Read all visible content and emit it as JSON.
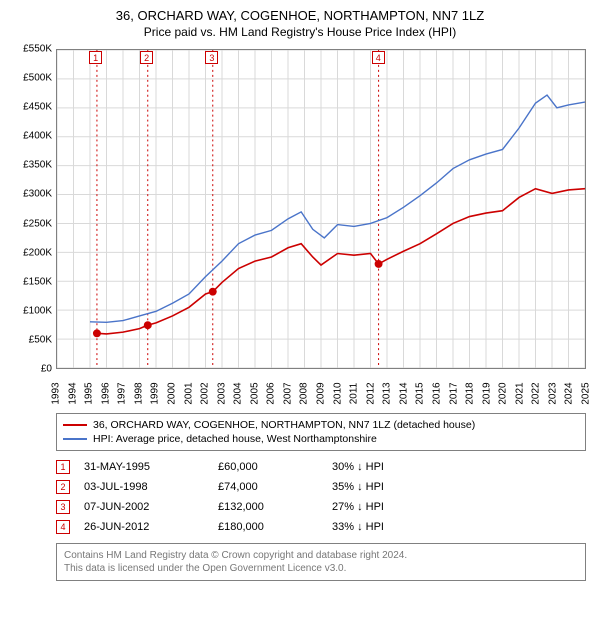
{
  "title": "36, ORCHARD WAY, COGENHOE, NORTHAMPTON, NN7 1LZ",
  "subtitle": "Price paid vs. HM Land Registry's House Price Index (HPI)",
  "chart": {
    "type": "line",
    "background_color": "#ffffff",
    "border_color": "#808080",
    "grid_color": "#d9d9d9",
    "event_line_color": "#cc0000",
    "xlim": [
      1993,
      2025
    ],
    "ylim": [
      0,
      550000
    ],
    "ytick_step": 50000,
    "y_ticks": [
      "£0",
      "£50K",
      "£100K",
      "£150K",
      "£200K",
      "£250K",
      "£300K",
      "£350K",
      "£400K",
      "£450K",
      "£500K",
      "£550K"
    ],
    "x_ticks": [
      "1993",
      "1994",
      "1995",
      "1996",
      "1997",
      "1998",
      "1999",
      "2000",
      "2001",
      "2002",
      "2003",
      "2004",
      "2005",
      "2006",
      "2007",
      "2008",
      "2009",
      "2010",
      "2011",
      "2012",
      "2013",
      "2014",
      "2015",
      "2016",
      "2017",
      "2018",
      "2019",
      "2020",
      "2021",
      "2022",
      "2023",
      "2024",
      "2025"
    ],
    "series": [
      {
        "name": "hpi",
        "color": "#4a74c9",
        "line_width": 1.4,
        "points": [
          [
            1995.0,
            80000
          ],
          [
            1996.0,
            79000
          ],
          [
            1997.0,
            82000
          ],
          [
            1998.0,
            90000
          ],
          [
            1999.0,
            98000
          ],
          [
            2000.0,
            112000
          ],
          [
            2001.0,
            128000
          ],
          [
            2002.0,
            158000
          ],
          [
            2003.0,
            185000
          ],
          [
            2004.0,
            215000
          ],
          [
            2005.0,
            230000
          ],
          [
            2006.0,
            238000
          ],
          [
            2007.0,
            258000
          ],
          [
            2007.8,
            270000
          ],
          [
            2008.5,
            240000
          ],
          [
            2009.2,
            225000
          ],
          [
            2010.0,
            248000
          ],
          [
            2011.0,
            245000
          ],
          [
            2012.0,
            250000
          ],
          [
            2013.0,
            260000
          ],
          [
            2014.0,
            278000
          ],
          [
            2015.0,
            298000
          ],
          [
            2016.0,
            320000
          ],
          [
            2017.0,
            345000
          ],
          [
            2018.0,
            360000
          ],
          [
            2019.0,
            370000
          ],
          [
            2020.0,
            378000
          ],
          [
            2021.0,
            415000
          ],
          [
            2022.0,
            458000
          ],
          [
            2022.7,
            472000
          ],
          [
            2023.3,
            450000
          ],
          [
            2024.0,
            455000
          ],
          [
            2025.0,
            460000
          ]
        ]
      },
      {
        "name": "property",
        "color": "#cc0000",
        "line_width": 1.6,
        "points": [
          [
            1995.42,
            60000
          ],
          [
            1996.0,
            59000
          ],
          [
            1997.0,
            62000
          ],
          [
            1998.0,
            68000
          ],
          [
            1998.5,
            74000
          ],
          [
            1999.0,
            78000
          ],
          [
            2000.0,
            90000
          ],
          [
            2001.0,
            105000
          ],
          [
            2002.0,
            128000
          ],
          [
            2002.44,
            132000
          ],
          [
            2003.0,
            148000
          ],
          [
            2004.0,
            172000
          ],
          [
            2005.0,
            185000
          ],
          [
            2006.0,
            192000
          ],
          [
            2007.0,
            208000
          ],
          [
            2007.8,
            215000
          ],
          [
            2008.5,
            192000
          ],
          [
            2009.0,
            178000
          ],
          [
            2010.0,
            198000
          ],
          [
            2011.0,
            195000
          ],
          [
            2012.0,
            198000
          ],
          [
            2012.49,
            180000
          ],
          [
            2013.0,
            188000
          ],
          [
            2014.0,
            202000
          ],
          [
            2015.0,
            215000
          ],
          [
            2016.0,
            232000
          ],
          [
            2017.0,
            250000
          ],
          [
            2018.0,
            262000
          ],
          [
            2019.0,
            268000
          ],
          [
            2020.0,
            272000
          ],
          [
            2021.0,
            295000
          ],
          [
            2022.0,
            310000
          ],
          [
            2023.0,
            302000
          ],
          [
            2024.0,
            308000
          ],
          [
            2025.0,
            310000
          ]
        ]
      }
    ],
    "event_markers": [
      {
        "n": "1",
        "x": 1995.42,
        "y": 60000
      },
      {
        "n": "2",
        "x": 1998.5,
        "y": 74000
      },
      {
        "n": "3",
        "x": 2002.44,
        "y": 132000
      },
      {
        "n": "4",
        "x": 2012.49,
        "y": 180000
      }
    ],
    "marker_dot_color": "#cc0000",
    "marker_dot_radius": 4
  },
  "legend": {
    "items": [
      {
        "color": "#cc0000",
        "label": "36, ORCHARD WAY, COGENHOE, NORTHAMPTON, NN7 1LZ (detached house)"
      },
      {
        "color": "#4a74c9",
        "label": "HPI: Average price, detached house, West Northamptonshire"
      }
    ]
  },
  "events": [
    {
      "n": "1",
      "date": "31-MAY-1995",
      "price": "£60,000",
      "diff": "30% ↓ HPI"
    },
    {
      "n": "2",
      "date": "03-JUL-1998",
      "price": "£74,000",
      "diff": "35% ↓ HPI"
    },
    {
      "n": "3",
      "date": "07-JUN-2002",
      "price": "£132,000",
      "diff": "27% ↓ HPI"
    },
    {
      "n": "4",
      "date": "26-JUN-2012",
      "price": "£180,000",
      "diff": "33% ↓ HPI"
    }
  ],
  "footer": {
    "line1": "Contains HM Land Registry data © Crown copyright and database right 2024.",
    "line2": "This data is licensed under the Open Government Licence v3.0."
  }
}
